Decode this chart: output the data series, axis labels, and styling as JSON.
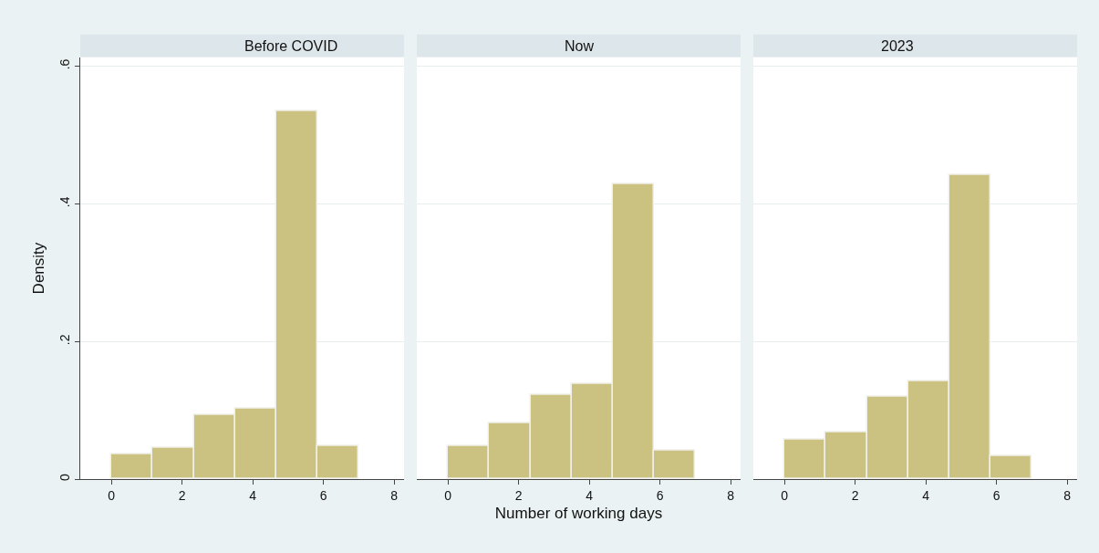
{
  "chart_data": [
    {
      "type": "histogram",
      "title": "Before COVID",
      "ylabel": "Density",
      "bins": [
        0,
        1.1667,
        2.3333,
        3.5,
        4.6667,
        5.8333,
        7
      ],
      "values": [
        0.036,
        0.046,
        0.093,
        0.103,
        0.535,
        0.048
      ],
      "color": "#cbc282",
      "xlim": [
        -0.88,
        8.28
      ],
      "xticks": [
        0,
        2,
        4,
        6,
        8
      ],
      "ylim": [
        0,
        0.613
      ],
      "yticks": [
        {
          "value": 0,
          "label": "0"
        },
        {
          "value": 0.2,
          "label": ".2"
        },
        {
          "value": 0.4,
          "label": ".4"
        },
        {
          "value": 0.6,
          "label": ".6"
        }
      ],
      "grid": "y"
    },
    {
      "type": "histogram",
      "title": "Now",
      "xlabel": "Number of working days",
      "bins": [
        0,
        1.1667,
        2.3333,
        3.5,
        4.6667,
        5.8333,
        7
      ],
      "values": [
        0.049,
        0.082,
        0.122,
        0.138,
        0.429,
        0.042
      ],
      "color": "#cbc282",
      "xlim": [
        -0.88,
        8.28
      ],
      "xticks": [
        0,
        2,
        4,
        6,
        8
      ],
      "ylim": [
        0,
        0.613
      ],
      "yticks": [
        0,
        0.2,
        0.4,
        0.6
      ],
      "grid": "y",
      "tick_labels": "x"
    },
    {
      "type": "histogram",
      "title": "2023",
      "bins": [
        0,
        1.1667,
        2.3333,
        3.5,
        4.6667,
        5.8333,
        7
      ],
      "values": [
        0.058,
        0.068,
        0.12,
        0.143,
        0.442,
        0.034
      ],
      "color": "#cbc282",
      "xlim": [
        -0.88,
        8.28
      ],
      "xticks": [
        0,
        2,
        4,
        6,
        8
      ],
      "ylim": [
        0,
        0.613
      ],
      "yticks": [
        0,
        0.2,
        0.4,
        0.6
      ],
      "grid": "y",
      "tick_labels": "x"
    }
  ]
}
